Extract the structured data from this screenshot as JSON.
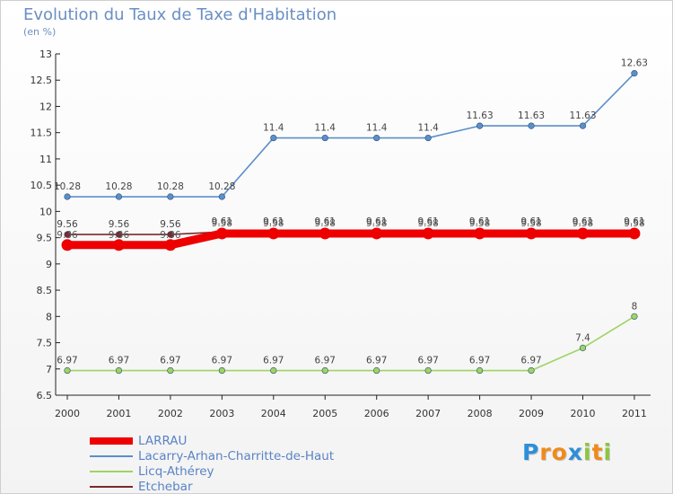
{
  "header": {
    "title": "Evolution du Taux de Taxe d'Habitation",
    "subtitle": "(en %)"
  },
  "chart_data": {
    "type": "line",
    "title": "Evolution du Taux de Taxe d'Habitation",
    "ylabel": "(en %)",
    "xlabel": "",
    "categories": [
      "2000",
      "2001",
      "2002",
      "2003",
      "2004",
      "2005",
      "2006",
      "2007",
      "2008",
      "2009",
      "2010",
      "2011"
    ],
    "yticks": [
      "6.5",
      "7",
      "7.5",
      "8",
      "8.5",
      "9",
      "9.5",
      "10",
      "10.5",
      "11",
      "11.5",
      "12",
      "12.5",
      "13"
    ],
    "ylim": [
      6.5,
      13
    ],
    "grid": false,
    "legend_position": "bottom-left",
    "series": [
      {
        "name": "Lacarry-Arhan-Charritte-de-Haut",
        "color": "#5b8fc9",
        "values": [
          10.28,
          10.28,
          10.28,
          10.28,
          11.4,
          11.4,
          11.4,
          11.4,
          11.63,
          11.63,
          11.63,
          12.63
        ],
        "labels": [
          "10.28",
          "10.28",
          "10.28",
          "10.28",
          "11.4",
          "11.4",
          "11.4",
          "11.4",
          "11.63",
          "11.63",
          "11.63",
          "12.63"
        ]
      },
      {
        "name": "Licq-Athérey",
        "color": "#9ed462",
        "values": [
          6.97,
          6.97,
          6.97,
          6.97,
          6.97,
          6.97,
          6.97,
          6.97,
          6.97,
          6.97,
          7.4,
          8
        ],
        "labels": [
          "6.97",
          "6.97",
          "6.97",
          "6.97",
          "6.97",
          "6.97",
          "6.97",
          "6.97",
          "6.97",
          "6.97",
          "7.4",
          "8"
        ]
      },
      {
        "name": "Etchebar",
        "color": "#7a2a2a",
        "values": [
          9.56,
          9.56,
          9.56,
          9.61,
          9.61,
          9.61,
          9.61,
          9.61,
          9.61,
          9.61,
          9.61,
          9.61
        ],
        "labels": [
          "9.56",
          "9.56",
          "9.56",
          "9.61",
          "9.61",
          "9.61",
          "9.61",
          "9.61",
          "9.61",
          "9.61",
          "9.61",
          "9.61"
        ]
      },
      {
        "name": "LARRAU",
        "color": "#ee0000",
        "values": [
          9.36,
          9.36,
          9.36,
          9.58,
          9.58,
          9.58,
          9.58,
          9.58,
          9.58,
          9.58,
          9.58,
          9.58
        ],
        "labels": [
          "9.36",
          "9.36",
          "9.36",
          "9.58",
          "9.58",
          "9.58",
          "9.58",
          "9.58",
          "9.58",
          "9.58",
          "9.58",
          "9.58"
        ]
      }
    ]
  },
  "legend": {
    "items": [
      {
        "label": "LARRAU",
        "color": "#ee0000"
      },
      {
        "label": "Lacarry-Arhan-Charritte-de-Haut",
        "color": "#5b8fc9"
      },
      {
        "label": "Licq-Athérey",
        "color": "#9ed462"
      },
      {
        "label": "Etchebar",
        "color": "#7a2a2a"
      }
    ]
  },
  "logo": {
    "text": "Proxiti",
    "letters": [
      {
        "ch": "P",
        "color": "#2e8fd8"
      },
      {
        "ch": "r",
        "color": "#f08a1c"
      },
      {
        "ch": "o",
        "color": "#f08a1c"
      },
      {
        "ch": "x",
        "color": "#2e8fd8"
      },
      {
        "ch": "i",
        "color": "#8cc63f"
      },
      {
        "ch": "t",
        "color": "#f08a1c"
      },
      {
        "ch": "i",
        "color": "#8cc63f"
      }
    ]
  }
}
